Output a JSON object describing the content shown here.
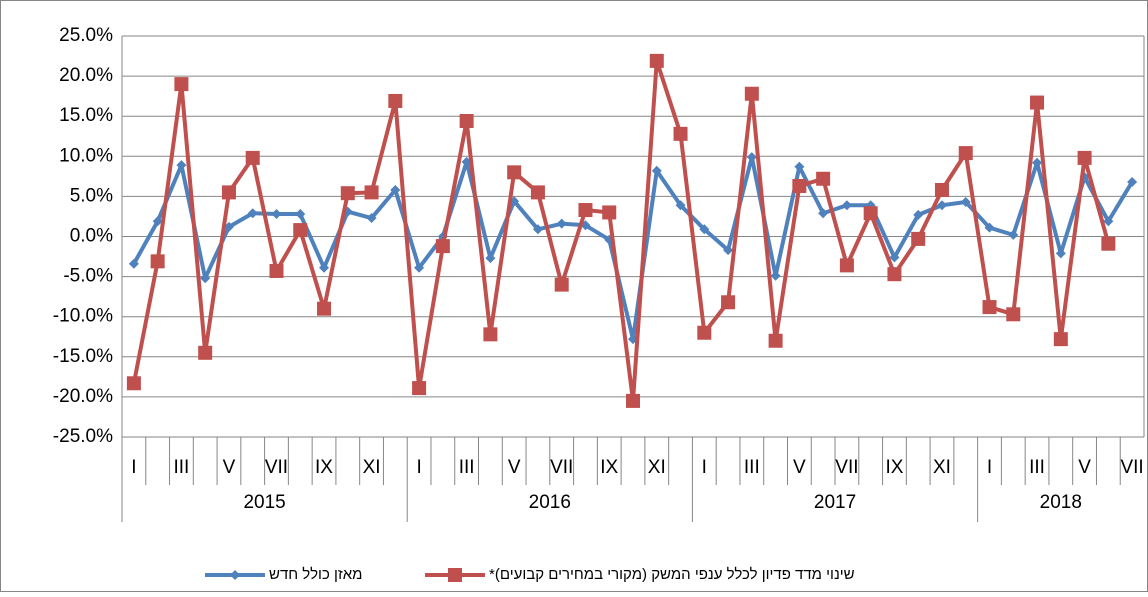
{
  "chart_data": {
    "type": "line",
    "categories": [
      "I",
      null,
      "III",
      null,
      "V",
      null,
      "VII",
      null,
      "IX",
      null,
      "XI",
      null,
      "I",
      null,
      "III",
      null,
      "V",
      null,
      "VII",
      null,
      "IX",
      null,
      "XI",
      null,
      "I",
      null,
      "III",
      null,
      "V",
      null,
      "VII",
      null,
      "IX",
      null,
      "XI",
      null,
      "I",
      null,
      "III",
      null,
      "V",
      null,
      "VII"
    ],
    "years": [
      "2015",
      "2016",
      "2017",
      "2018"
    ],
    "series": [
      {
        "name": "מאזן כולל חדש",
        "color": "#4f81bd",
        "marker": "diamond",
        "values": [
          -3.4,
          1.9,
          8.9,
          -5.2,
          1.2,
          2.9,
          2.8,
          2.8,
          -3.9,
          3.1,
          2.3,
          5.8,
          -3.9,
          0,
          9.3,
          -2.7,
          4.4,
          0.9,
          1.6,
          1.4,
          -0.4,
          -12.8,
          8.2,
          3.9,
          0.9,
          -1.7,
          9.9,
          -4.9,
          8.7,
          2.9,
          3.9,
          3.9,
          -2.6,
          2.7,
          3.9,
          4.3,
          1.1,
          0.2,
          9.2,
          -2.1,
          7.4,
          1.9,
          6.8
        ]
      },
      {
        "name": "שינוי מדד פדיון לכלל ענפי המשק (מקורי במחירים קבועים)*",
        "color": "#c0504d",
        "marker": "square",
        "values": [
          -18.3,
          -3.1,
          19.0,
          -14.5,
          5.5,
          9.8,
          -4.3,
          0.8,
          -9.0,
          5.4,
          5.5,
          16.9,
          -18.9,
          -1.2,
          14.4,
          -12.2,
          8.0,
          5.5,
          -6.0,
          3.3,
          3.0,
          -20.5,
          21.9,
          12.8,
          -12.0,
          -8.2,
          17.8,
          -13.0,
          6.3,
          7.2,
          -3.6,
          2.9,
          -4.7,
          -0.3,
          5.8,
          10.4,
          -8.8,
          -9.7,
          16.7,
          -12.8,
          9.8,
          -0.9,
          null
        ]
      }
    ],
    "ylim": [
      -25,
      25
    ],
    "yticks": [
      {
        "value": -25,
        "label": "-25.0%"
      },
      {
        "value": -20,
        "label": "-20.0%"
      },
      {
        "value": -15,
        "label": "-15.0%"
      },
      {
        "value": -10,
        "label": "-10.0%"
      },
      {
        "value": -5,
        "label": "-5.0%"
      },
      {
        "value": 0,
        "label": "0.0%"
      },
      {
        "value": 5,
        "label": "5.0%"
      },
      {
        "value": 10,
        "label": "10.0%"
      },
      {
        "value": 15,
        "label": "15.0%"
      },
      {
        "value": 20,
        "label": "20.0%"
      },
      {
        "value": 25,
        "label": "25.0%"
      }
    ],
    "grid": true,
    "legend": "bottom"
  }
}
